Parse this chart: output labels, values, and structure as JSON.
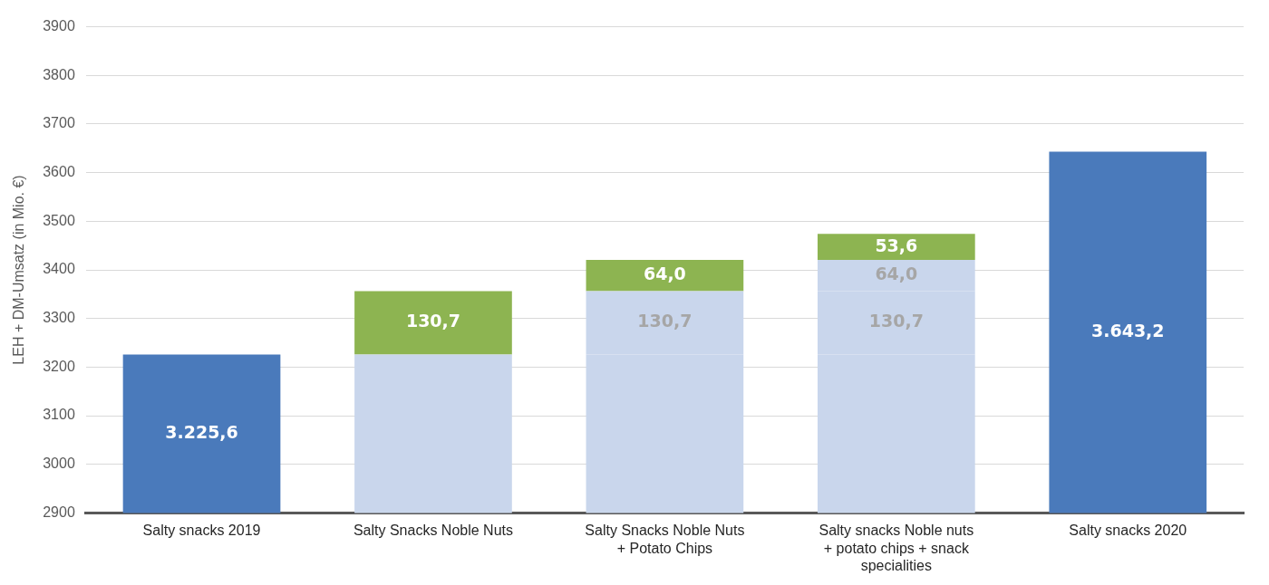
{
  "chart_data": {
    "type": "bar",
    "stacked": true,
    "ylabel": "LEH + DM-Umsatz (in Mio. €)",
    "categories": [
      "Salty snacks 2019",
      "Salty Snacks Noble Nuts",
      "Salty Snacks Noble Nuts + Potato Chips",
      "Salty snacks Noble nuts + potato chips + snack specialities",
      "Salty snacks 2020"
    ],
    "series": [
      {
        "colors": [
          "#4a7abb",
          "#c9d6ec",
          "#c9d6ec",
          "#c9d6ec",
          "#4a7abb"
        ],
        "values": [
          3225.6,
          3225.6,
          3225.6,
          3225.6,
          3643.2
        ],
        "value_labels": [
          "3.225,6",
          null,
          null,
          null,
          "3.643,2"
        ]
      },
      {
        "colors": [
          null,
          "#8db451",
          "#c9d6ec",
          "#c9d6ec",
          null
        ],
        "values": [
          null,
          130.7,
          130.7,
          130.7,
          null
        ],
        "base": [
          null,
          3225.6,
          3225.6,
          3225.6,
          null
        ],
        "value_labels": [
          null,
          "130,7",
          "130,7",
          "130,7",
          null
        ]
      },
      {
        "colors": [
          null,
          null,
          "#8db451",
          "#c9d6ec",
          null
        ],
        "values": [
          null,
          null,
          64.0,
          64.0,
          null
        ],
        "base": [
          null,
          null,
          3356.3,
          3356.3,
          null
        ],
        "value_labels": [
          null,
          null,
          "64,0",
          "64,0",
          null
        ]
      },
      {
        "colors": [
          null,
          null,
          null,
          "#8db451",
          null
        ],
        "values": [
          null,
          null,
          null,
          53.6,
          null
        ],
        "base": [
          null,
          null,
          null,
          3420.3,
          null
        ],
        "value_labels": [
          null,
          null,
          null,
          "53,6",
          null
        ]
      }
    ],
    "ylim": [
      2900,
      3900
    ],
    "yticks": [
      2900,
      3000,
      3100,
      3200,
      3300,
      3400,
      3500,
      3600,
      3700,
      3800,
      3900
    ],
    "grid": "y",
    "legend": false
  }
}
